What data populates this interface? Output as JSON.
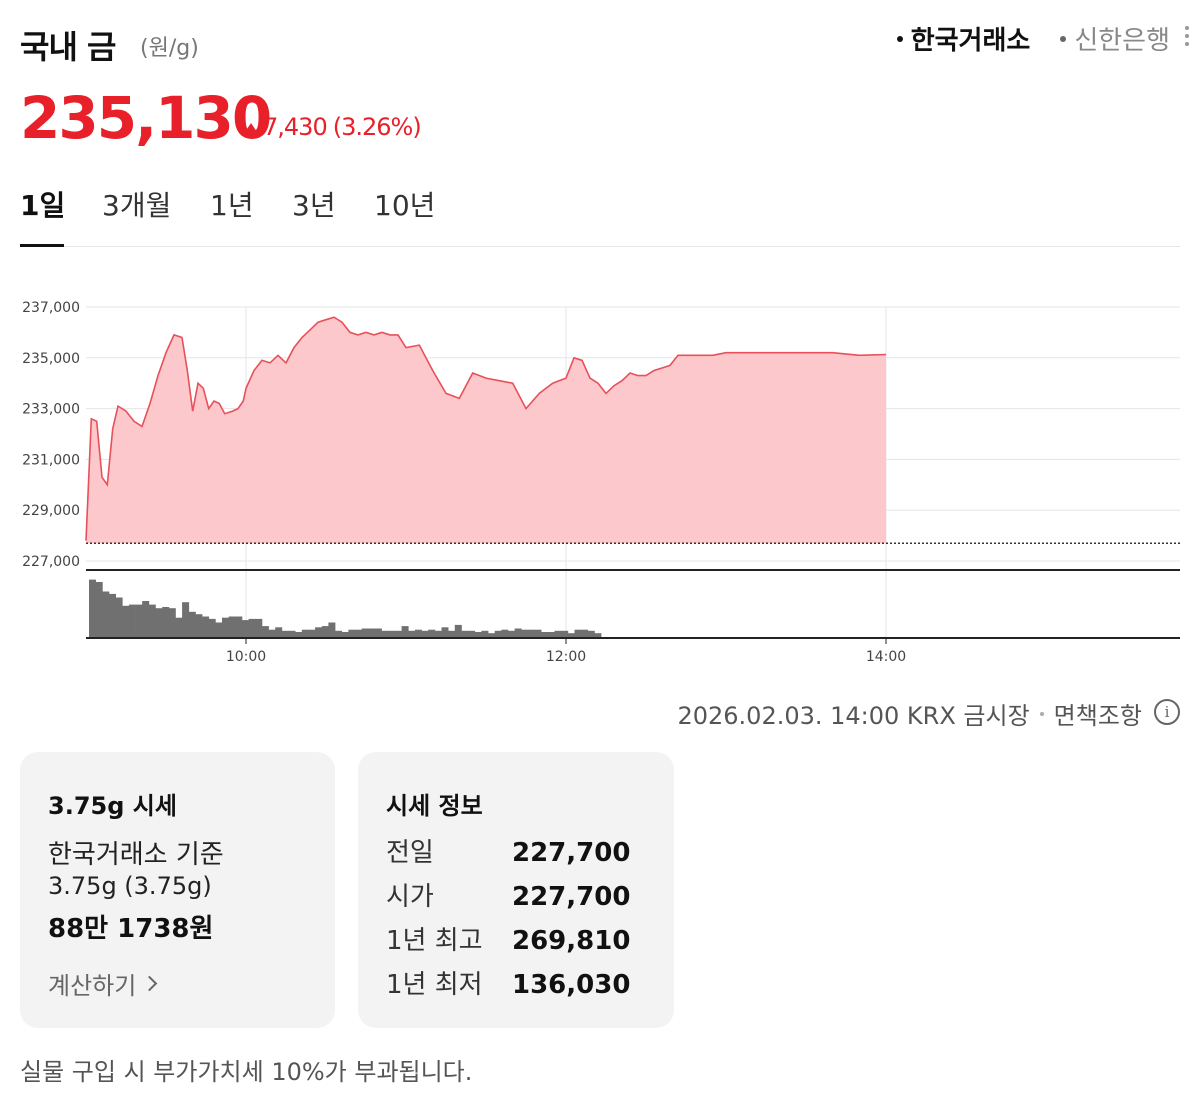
{
  "header": {
    "title": "국내 금",
    "unit": "(원/g)",
    "sources": [
      {
        "label": "한국거래소",
        "active": true
      },
      {
        "label": "신한은행",
        "active": false
      }
    ]
  },
  "price": {
    "current": "235,130",
    "change": "7,430",
    "change_pct": "(3.26%)",
    "direction": "up",
    "color": "#e8202a"
  },
  "tabs": [
    "1일",
    "3개월",
    "1년",
    "3년",
    "10년"
  ],
  "active_tab": "1일",
  "chart_data": {
    "type": "area",
    "x_start": "09:00",
    "x_end": "15:30",
    "xticks": [
      "10:00",
      "12:00",
      "14:00"
    ],
    "ylim": [
      227000,
      238000
    ],
    "yticks": [
      "237,000",
      "235,000",
      "233,000",
      "231,000",
      "229,000",
      "227,000"
    ],
    "baseline_prev_close": 227700,
    "grid": true,
    "fill_color": "#fcc8cb",
    "line_color": "#e8505a",
    "series": [
      {
        "x": [
          "09:00",
          "09:02",
          "09:04",
          "09:06",
          "09:08",
          "09:10",
          "09:12",
          "09:15",
          "09:18",
          "09:21",
          "09:24",
          "09:27",
          "09:30",
          "09:33",
          "09:36",
          "09:38",
          "09:40",
          "09:42",
          "09:44",
          "09:46",
          "09:48",
          "09:50",
          "09:52",
          "09:55",
          "09:57",
          "09:59",
          "10:00",
          "10:03",
          "10:06",
          "10:09",
          "10:12",
          "10:15",
          "10:18",
          "10:21",
          "10:24",
          "10:27",
          "10:30",
          "10:33",
          "10:36",
          "10:39",
          "10:42",
          "10:45",
          "10:48",
          "10:51",
          "10:54",
          "10:57",
          "11:00",
          "11:05",
          "11:10",
          "11:15",
          "11:20",
          "11:25",
          "11:30",
          "11:35",
          "11:40",
          "11:45",
          "11:50",
          "11:55",
          "12:00",
          "12:03",
          "12:06",
          "12:09",
          "12:12",
          "12:15",
          "12:18",
          "12:21",
          "12:24",
          "12:27",
          "12:30",
          "12:33",
          "12:36",
          "12:39",
          "12:42",
          "12:45",
          "12:50",
          "12:55",
          "13:00",
          "13:10",
          "13:20",
          "13:30",
          "13:40",
          "13:50",
          "14:00"
        ],
        "y": [
          227800,
          232600,
          232500,
          230300,
          230000,
          232200,
          233100,
          232900,
          232500,
          232300,
          233200,
          234300,
          235200,
          235900,
          235800,
          234500,
          232900,
          234000,
          233800,
          233000,
          233300,
          233200,
          232800,
          232900,
          233000,
          233300,
          233800,
          234500,
          234900,
          234800,
          235100,
          234800,
          235400,
          235800,
          236100,
          236400,
          236500,
          236600,
          236400,
          236000,
          235900,
          236000,
          235900,
          236000,
          235900,
          235900,
          235400,
          235500,
          234500,
          233600,
          233400,
          234400,
          234200,
          234100,
          234000,
          233000,
          233600,
          234000,
          234200,
          235000,
          234900,
          234200,
          234000,
          233600,
          233900,
          234100,
          234400,
          234300,
          234300,
          234500,
          234600,
          234700,
          235100,
          235100,
          235100,
          235100,
          235200,
          235200,
          235200,
          235200,
          235200,
          235100,
          235130
        ]
      }
    ],
    "volume": [
      49,
      47,
      39,
      37,
      34,
      27,
      28,
      28,
      31,
      28,
      25,
      26,
      25,
      17,
      30,
      22,
      20,
      18,
      16,
      13,
      17,
      18,
      18,
      15,
      16,
      16,
      10,
      7,
      9,
      6,
      6,
      5,
      7,
      7,
      9,
      10,
      13,
      6,
      5,
      7,
      7,
      8,
      8,
      8,
      6,
      6,
      6,
      10,
      6,
      7,
      6,
      7,
      6,
      9,
      6,
      11,
      6,
      6,
      5,
      6,
      4,
      6,
      7,
      6,
      8,
      7,
      7,
      7,
      5,
      5,
      6,
      6,
      4,
      7,
      7,
      6,
      4
    ]
  },
  "timestamp": "2026.02.03. 14:00 KRX 금시장",
  "disclaimer": "면책조항",
  "card_gram": {
    "title": "3.75g 시세",
    "basis": "한국거래소 기준",
    "weight": "3.75g (3.75g)",
    "amount": "88만 1738원",
    "calc_label": "계산하기"
  },
  "card_info": {
    "title": "시세 정보",
    "rows": [
      {
        "label": "전일",
        "value": "227,700"
      },
      {
        "label": "시가",
        "value": "227,700"
      },
      {
        "label": "1년 최고",
        "value": "269,810"
      },
      {
        "label": "1년 최저",
        "value": "136,030"
      }
    ]
  },
  "notice": "실물 구입 시 부가가치세 10%가 부과됩니다."
}
